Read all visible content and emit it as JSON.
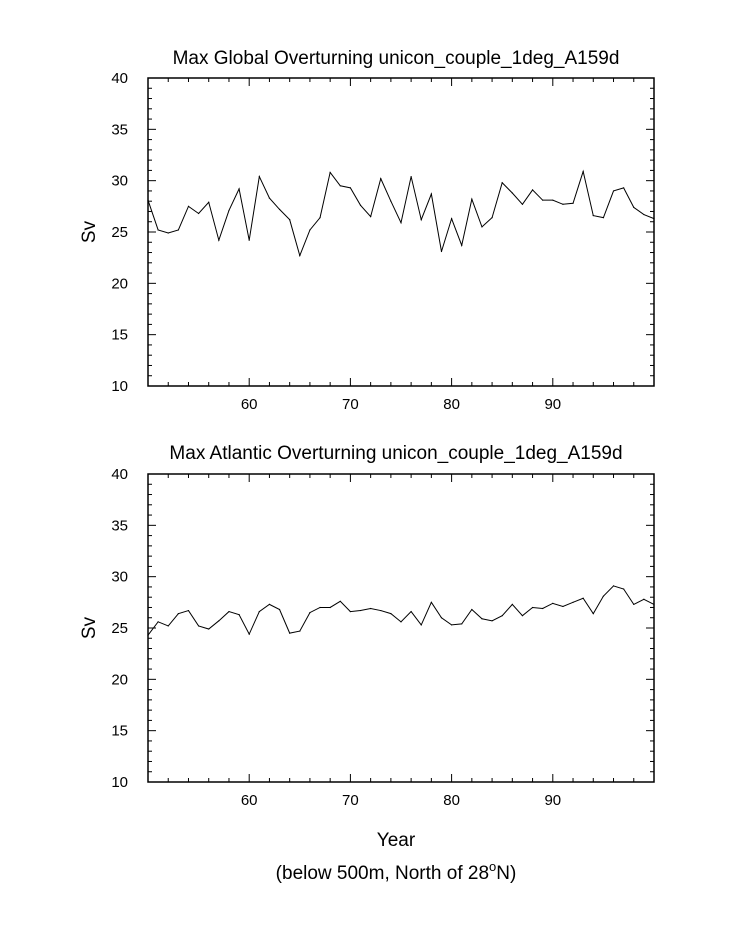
{
  "chart_data": [
    {
      "type": "line",
      "title": "Max Global Overturning unicon_couple_1deg_A159d",
      "xlabel": "",
      "ylabel": "Sv",
      "xlim": [
        50,
        100
      ],
      "ylim": [
        10,
        40
      ],
      "grid": false,
      "x_ticks": [
        60,
        70,
        80,
        90
      ],
      "y_ticks": [
        10,
        15,
        20,
        25,
        30,
        35,
        40
      ],
      "series": [
        {
          "x": [
            50,
            51,
            52,
            53,
            54,
            55,
            56,
            57,
            58,
            59,
            60,
            61,
            62,
            63,
            64,
            65,
            66,
            67,
            68,
            69,
            70,
            71,
            72,
            73,
            74,
            75,
            76,
            77,
            78,
            79,
            80,
            81,
            82,
            83,
            84,
            85,
            86,
            87,
            88,
            89,
            90,
            91,
            92,
            93,
            94,
            95,
            96,
            97,
            98,
            99,
            100
          ],
          "values": [
            28.1,
            25.2,
            24.9,
            25.2,
            27.5,
            26.8,
            27.9,
            24.2,
            27.1,
            29.2,
            24.2,
            30.4,
            28.3,
            27.2,
            26.2,
            22.7,
            25.2,
            26.4,
            30.8,
            29.5,
            29.3,
            27.6,
            26.5,
            30.2,
            28.0,
            25.9,
            30.4,
            26.2,
            28.7,
            23.1,
            26.3,
            23.7,
            28.2,
            25.5,
            26.4,
            29.8,
            28.8,
            27.7,
            29.1,
            28.1,
            28.1,
            27.7,
            27.8,
            30.9,
            26.6,
            26.4,
            29.0,
            29.3,
            27.4,
            26.7,
            26.3
          ]
        }
      ]
    },
    {
      "type": "line",
      "title": "Max Atlantic Overturning unicon_couple_1deg_A159d",
      "xlabel": "Year",
      "ylabel": "Sv",
      "xlim": [
        50,
        100
      ],
      "ylim": [
        10,
        40
      ],
      "grid": false,
      "x_ticks": [
        60,
        70,
        80,
        90
      ],
      "y_ticks": [
        10,
        15,
        20,
        25,
        30,
        35,
        40
      ],
      "series": [
        {
          "x": [
            50,
            51,
            52,
            53,
            54,
            55,
            56,
            57,
            58,
            59,
            60,
            61,
            62,
            63,
            64,
            65,
            66,
            67,
            68,
            69,
            70,
            71,
            72,
            73,
            74,
            75,
            76,
            77,
            78,
            79,
            80,
            81,
            82,
            83,
            84,
            85,
            86,
            87,
            88,
            89,
            90,
            91,
            92,
            93,
            94,
            95,
            96,
            97,
            98,
            99,
            100
          ],
          "values": [
            24.3,
            25.6,
            25.2,
            26.4,
            26.7,
            25.2,
            24.9,
            25.7,
            26.6,
            26.3,
            24.4,
            26.6,
            27.3,
            26.8,
            24.5,
            24.7,
            26.5,
            27.0,
            27.0,
            27.6,
            26.6,
            26.7,
            26.9,
            26.7,
            26.4,
            25.6,
            26.6,
            25.3,
            27.5,
            26.0,
            25.3,
            25.4,
            26.8,
            25.9,
            25.7,
            26.2,
            27.3,
            26.2,
            27.0,
            26.9,
            27.4,
            27.1,
            27.5,
            27.9,
            26.4,
            28.1,
            29.1,
            28.8,
            27.3,
            27.8,
            27.3
          ]
        }
      ]
    }
  ],
  "caption": {
    "prefix": "(below 500m, North of 28",
    "superscript": "o",
    "suffix": "N)"
  }
}
